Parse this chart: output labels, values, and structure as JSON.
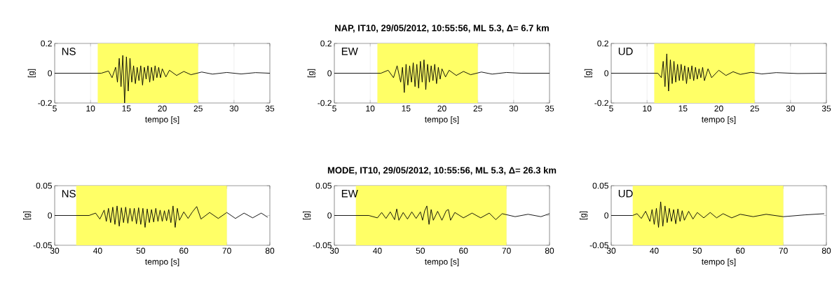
{
  "chart_data": [
    {
      "type": "line",
      "xlabel": "tempo [s]",
      "ylabel": "[g]",
      "annotations": [
        "NS"
      ],
      "xlim": [
        5,
        35
      ],
      "ylim": [
        -0.2,
        0.2
      ],
      "xticks": [
        5,
        10,
        15,
        20,
        25,
        30,
        35
      ],
      "yticks": [
        -0.2,
        0,
        0.2
      ],
      "grid": "x",
      "color": "#000000",
      "bands": [
        {
          "axis": "x",
          "from": 11,
          "to": 25,
          "color": "#ffff66"
        }
      ],
      "x": [
        5,
        11.5,
        12.5,
        13,
        13.5,
        13.75,
        14,
        14.25,
        14.5,
        14.75,
        15,
        15.25,
        15.5,
        15.75,
        16,
        16.25,
        16.5,
        16.75,
        17,
        17.25,
        17.5,
        17.75,
        18,
        18.25,
        18.5,
        18.75,
        19,
        19.25,
        19.5,
        19.75,
        20,
        20.5,
        21,
        22,
        23,
        24,
        25.5,
        27,
        29,
        31,
        33,
        35
      ],
      "values": [
        0,
        0,
        0.015,
        -0.03,
        0.04,
        -0.06,
        0.1,
        -0.09,
        0.12,
        -0.2,
        0.11,
        -0.12,
        0.1,
        -0.06,
        0.05,
        -0.07,
        0.04,
        -0.05,
        0.05,
        -0.08,
        0.04,
        -0.04,
        0.05,
        -0.06,
        0.04,
        -0.05,
        0.05,
        -0.03,
        0.04,
        -0.03,
        0.03,
        -0.025,
        0.02,
        -0.015,
        0.012,
        -0.01,
        0.008,
        -0.006,
        0.005,
        -0.005,
        0.004,
        0
      ]
    },
    {
      "type": "line",
      "title": "**NAP, IT10, 29/05/2012, 10:55:56, ML 5.3, Δ= 6.7 km**",
      "xlabel": "tempo [s]",
      "ylabel": "[g]",
      "annotations": [
        "EW"
      ],
      "xlim": [
        5,
        35
      ],
      "ylim": [
        -0.2,
        0.2
      ],
      "xticks": [
        5,
        10,
        15,
        20,
        25,
        30,
        35
      ],
      "yticks": [
        -0.2,
        0,
        0.2
      ],
      "grid": "x",
      "color": "#000000",
      "bands": [
        {
          "axis": "x",
          "from": 11,
          "to": 25,
          "color": "#ffff66"
        }
      ],
      "x": [
        5,
        11.5,
        12.5,
        13.25,
        13.75,
        14.25,
        14.5,
        14.75,
        15,
        15.25,
        15.5,
        15.75,
        16,
        16.25,
        16.5,
        16.75,
        17,
        17.25,
        17.5,
        17.75,
        18,
        18.25,
        18.5,
        18.75,
        19,
        19.25,
        19.5,
        19.75,
        20,
        20.5,
        21,
        22,
        23,
        24,
        25.5,
        27,
        29,
        31,
        35
      ],
      "values": [
        0,
        0,
        0.02,
        -0.03,
        0.05,
        -0.06,
        0.04,
        -0.13,
        0.06,
        -0.08,
        0.05,
        -0.06,
        0.07,
        -0.09,
        0.06,
        -0.1,
        0.08,
        -0.06,
        0.09,
        -0.11,
        0.06,
        -0.06,
        0.05,
        -0.05,
        0.06,
        -0.07,
        0.04,
        -0.04,
        0.03,
        -0.025,
        0.02,
        -0.015,
        0.012,
        -0.01,
        0.008,
        -0.006,
        0.005,
        0,
        0
      ]
    },
    {
      "type": "line",
      "xlabel": "tempo [s]",
      "ylabel": "[g]",
      "annotations": [
        "UD"
      ],
      "xlim": [
        5,
        35
      ],
      "ylim": [
        -0.2,
        0.2
      ],
      "xticks": [
        5,
        10,
        15,
        20,
        25,
        30,
        35
      ],
      "yticks": [
        -0.2,
        0,
        0.2
      ],
      "grid": "x",
      "color": "#000000",
      "bands": [
        {
          "axis": "x",
          "from": 11,
          "to": 25,
          "color": "#ffff66"
        }
      ],
      "x": [
        5,
        11.5,
        12,
        12.25,
        12.5,
        12.75,
        13,
        13.25,
        13.5,
        13.75,
        14,
        14.25,
        14.5,
        14.75,
        15,
        15.25,
        15.5,
        15.75,
        16,
        16.25,
        16.5,
        16.75,
        17,
        17.25,
        17.5,
        17.75,
        18,
        18.5,
        19,
        20,
        21,
        22,
        23,
        24.5,
        26,
        28,
        31,
        35
      ],
      "values": [
        0,
        0,
        -0.03,
        0.08,
        -0.09,
        0.13,
        -0.12,
        0.09,
        -0.07,
        0.08,
        -0.06,
        0.06,
        -0.05,
        0.06,
        -0.05,
        0.05,
        -0.07,
        0.04,
        -0.04,
        0.05,
        -0.05,
        0.04,
        -0.04,
        0.03,
        -0.03,
        0.04,
        -0.05,
        0.03,
        -0.03,
        0.02,
        -0.015,
        0.01,
        -0.008,
        0.006,
        -0.005,
        0.004,
        -0.002,
        0
      ]
    },
    {
      "type": "line",
      "xlabel": "tempo [s]",
      "ylabel": "[g]",
      "annotations": [
        "NS"
      ],
      "xlim": [
        30,
        80
      ],
      "ylim": [
        -0.05,
        0.05
      ],
      "xticks": [
        30,
        40,
        50,
        60,
        70,
        80
      ],
      "yticks": [
        -0.05,
        0,
        0.05
      ],
      "grid": "x",
      "color": "#000000",
      "bands": [
        {
          "axis": "x",
          "from": 35,
          "to": 70,
          "color": "#ffff66"
        }
      ],
      "x": [
        30,
        38,
        39.5,
        40.5,
        41.5,
        42,
        42.5,
        43,
        43.5,
        44,
        44.5,
        45,
        45.5,
        46,
        46.5,
        47,
        47.5,
        48,
        48.5,
        49,
        49.5,
        50,
        50.5,
        51,
        51.5,
        52,
        52.5,
        53,
        53.5,
        54,
        54.5,
        55,
        55.5,
        56,
        56.5,
        57,
        57.5,
        58,
        58.5,
        59,
        60,
        61,
        62,
        63,
        64,
        66,
        68,
        70,
        72,
        74,
        76,
        78,
        79.5
      ],
      "values": [
        0,
        0,
        0.004,
        -0.006,
        0.009,
        -0.01,
        0.012,
        -0.012,
        0.014,
        -0.015,
        0.016,
        -0.018,
        0.013,
        -0.012,
        0.014,
        -0.013,
        0.012,
        -0.01,
        0.012,
        -0.014,
        0.013,
        -0.015,
        0.012,
        -0.02,
        0.011,
        -0.012,
        0.01,
        -0.011,
        0.012,
        -0.01,
        0.009,
        -0.01,
        0.008,
        -0.009,
        0.01,
        -0.012,
        0.016,
        -0.02,
        0.012,
        -0.008,
        0.006,
        -0.005,
        0.006,
        0.015,
        -0.006,
        0.005,
        -0.005,
        0.005,
        -0.005,
        0.004,
        -0.004,
        0.004,
        -0.003
      ]
    },
    {
      "type": "line",
      "title": "**MODE, IT10, 29/05/2012, 10:55:56, ML 5.3, Δ= 26.3 km**",
      "xlabel": "tempo [s]",
      "ylabel": "[g]",
      "annotations": [
        "EW"
      ],
      "xlim": [
        30,
        80
      ],
      "ylim": [
        -0.05,
        0.05
      ],
      "xticks": [
        30,
        40,
        50,
        60,
        70,
        80
      ],
      "yticks": [
        -0.05,
        0,
        0.05
      ],
      "grid": "x",
      "color": "#000000",
      "bands": [
        {
          "axis": "x",
          "from": 35,
          "to": 70,
          "color": "#ffff66"
        }
      ],
      "x": [
        30,
        38,
        40,
        41,
        42,
        43,
        44,
        44.5,
        45,
        46,
        47,
        48,
        49,
        50,
        50.5,
        51,
        51.5,
        52,
        52.5,
        53,
        54,
        55,
        56,
        56.5,
        57,
        58,
        60,
        62,
        64,
        66,
        67.5,
        69,
        72,
        75,
        78,
        80
      ],
      "values": [
        0,
        0,
        -0.004,
        0.005,
        -0.005,
        0.006,
        -0.007,
        0.011,
        -0.008,
        0.005,
        -0.006,
        0.006,
        -0.005,
        0.006,
        -0.008,
        0.008,
        0.016,
        -0.015,
        0.01,
        -0.008,
        0.007,
        -0.008,
        0.008,
        0.01,
        -0.008,
        0.005,
        -0.004,
        0.004,
        -0.004,
        0.004,
        -0.007,
        0.003,
        -0.002,
        0.002,
        -0.002,
        0.003
      ]
    },
    {
      "type": "line",
      "xlabel": "tempo [s]",
      "ylabel": "[g]",
      "annotations": [
        "UD"
      ],
      "xlim": [
        30,
        80
      ],
      "ylim": [
        -0.05,
        0.05
      ],
      "xticks": [
        30,
        40,
        50,
        60,
        70,
        80
      ],
      "yticks": [
        -0.05,
        0,
        0.05
      ],
      "grid": "x",
      "color": "#000000",
      "bands": [
        {
          "axis": "x",
          "from": 35,
          "to": 70,
          "color": "#ffff66"
        }
      ],
      "x": [
        30,
        35,
        36,
        37,
        38,
        39,
        39.5,
        40,
        40.5,
        41,
        41.5,
        42,
        42.5,
        43,
        43.5,
        44,
        44.5,
        45,
        45.5,
        46,
        46.5,
        47,
        48,
        49,
        50,
        51.5,
        53,
        54.5,
        56,
        58,
        60,
        63,
        66,
        70,
        75,
        79.5
      ],
      "values": [
        0,
        0,
        0.003,
        -0.005,
        0.007,
        -0.01,
        0.01,
        -0.015,
        0.012,
        -0.02,
        0.023,
        -0.018,
        0.016,
        -0.012,
        0.012,
        -0.01,
        0.01,
        -0.014,
        0.011,
        -0.01,
        0.008,
        -0.008,
        0.007,
        -0.006,
        0.005,
        -0.004,
        0.005,
        -0.004,
        0.003,
        -0.004,
        0.002,
        -0.002,
        0.002,
        -0.002,
        0.001,
        0.003
      ]
    }
  ]
}
